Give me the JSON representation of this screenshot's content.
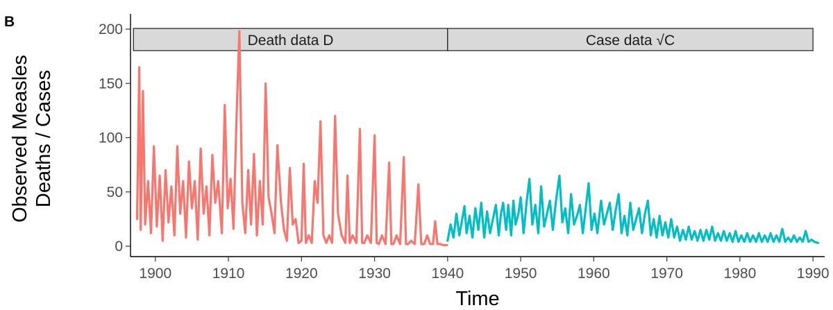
{
  "panel_label": "B",
  "chart_data": {
    "type": "line",
    "xlabel": "Time",
    "ylabel_lines": [
      "Observed Measles",
      "Deaths / Cases"
    ],
    "xlim": [
      1896.6,
      1991.6
    ],
    "ylim": [
      0,
      200
    ],
    "x_ticks": [
      1900,
      1910,
      1920,
      1930,
      1940,
      1950,
      1960,
      1970,
      1980,
      1990
    ],
    "y_ticks": [
      0,
      50,
      100,
      150,
      200
    ],
    "grid": false,
    "strips": [
      {
        "label": "Death data D",
        "x_start": 1897,
        "x_end": 1940
      },
      {
        "label": "Case data",
        "math": "√C",
        "x_start": 1940,
        "x_end": 1990
      }
    ],
    "series": [
      {
        "color": "#F8766D",
        "x": [
          1897.5,
          1897.8,
          1898.0,
          1898.3,
          1898.6,
          1899.0,
          1899.4,
          1899.8,
          1900.2,
          1900.6,
          1901.0,
          1901.4,
          1901.8,
          1902.2,
          1902.6,
          1903.0,
          1903.4,
          1903.8,
          1904.2,
          1904.6,
          1905.0,
          1905.4,
          1905.8,
          1906.2,
          1906.6,
          1907.0,
          1907.4,
          1907.8,
          1908.2,
          1908.6,
          1909.1,
          1909.5,
          1909.9,
          1910.3,
          1910.7,
          1911.1,
          1911.5,
          1911.9,
          1912.3,
          1912.7,
          1913.1,
          1913.5,
          1913.9,
          1914.3,
          1914.7,
          1915.1,
          1915.5,
          1915.9,
          1916.3,
          1916.7,
          1917.2,
          1917.6,
          1918.0,
          1918.4,
          1918.8,
          1919.2,
          1919.6,
          1920.0,
          1920.3,
          1920.6,
          1921.0,
          1921.4,
          1921.8,
          1922.2,
          1922.6,
          1923.0,
          1923.4,
          1923.8,
          1924.2,
          1924.6,
          1925.0,
          1925.5,
          1926.0,
          1926.3,
          1926.6,
          1927.0,
          1927.5,
          1928.0,
          1928.3,
          1928.6,
          1929.0,
          1929.5,
          1930.0,
          1930.3,
          1930.6,
          1931.0,
          1931.5,
          1932.0,
          1932.3,
          1932.6,
          1933.0,
          1933.5,
          1934.0,
          1934.3,
          1934.6,
          1935.0,
          1935.5,
          1936.0,
          1936.4,
          1936.8,
          1937.2,
          1937.6,
          1938.0,
          1938.3,
          1938.6,
          1939.0,
          1939.4,
          1939.9
        ],
        "y": [
          25,
          165,
          15,
          143,
          20,
          60,
          12,
          92,
          18,
          65,
          5,
          70,
          22,
          55,
          10,
          92,
          30,
          60,
          8,
          78,
          35,
          60,
          6,
          90,
          30,
          55,
          10,
          84,
          40,
          60,
          12,
          130,
          35,
          62,
          16,
          115,
          198,
          40,
          12,
          70,
          20,
          85,
          10,
          60,
          20,
          150,
          45,
          30,
          12,
          93,
          40,
          15,
          5,
          72,
          20,
          25,
          3,
          5,
          76,
          3,
          10,
          3,
          60,
          40,
          115,
          10,
          3,
          10,
          3,
          120,
          30,
          10,
          3,
          65,
          3,
          10,
          3,
          108,
          3,
          3,
          10,
          3,
          102,
          3,
          2,
          10,
          2,
          77,
          2,
          2,
          10,
          2,
          82,
          2,
          2,
          5,
          2,
          57,
          2,
          2,
          10,
          2,
          2,
          23,
          2,
          2,
          1,
          1
        ]
      },
      {
        "color": "#00BFC4",
        "x": [
          1940.0,
          1940.4,
          1940.8,
          1941.2,
          1941.6,
          1942.0,
          1942.3,
          1942.6,
          1943.0,
          1943.4,
          1943.8,
          1944.2,
          1944.6,
          1945.0,
          1945.4,
          1945.8,
          1946.2,
          1946.6,
          1947.0,
          1947.3,
          1947.6,
          1948.0,
          1948.3,
          1948.7,
          1949.0,
          1949.3,
          1949.7,
          1950.0,
          1950.4,
          1950.8,
          1951.2,
          1951.6,
          1952.0,
          1952.4,
          1952.8,
          1953.2,
          1953.6,
          1954.0,
          1954.4,
          1954.8,
          1955.3,
          1955.7,
          1956.1,
          1956.5,
          1956.9,
          1957.3,
          1957.7,
          1958.1,
          1958.5,
          1958.9,
          1959.3,
          1959.7,
          1960.1,
          1960.5,
          1961.0,
          1961.4,
          1961.8,
          1962.2,
          1962.6,
          1963.0,
          1963.4,
          1963.8,
          1964.2,
          1964.6,
          1965.0,
          1965.4,
          1965.8,
          1966.2,
          1966.6,
          1967.0,
          1967.4,
          1967.8,
          1968.2,
          1968.6,
          1969.0,
          1969.4,
          1969.8,
          1970.2,
          1970.6,
          1971.0,
          1971.4,
          1971.8,
          1972.2,
          1972.6,
          1973.0,
          1973.4,
          1973.8,
          1974.2,
          1974.6,
          1975.0,
          1975.4,
          1975.8,
          1976.2,
          1976.6,
          1977.0,
          1977.4,
          1977.8,
          1978.2,
          1978.6,
          1979.0,
          1979.4,
          1979.8,
          1980.2,
          1980.6,
          1981.0,
          1981.4,
          1981.8,
          1982.2,
          1982.6,
          1983.0,
          1983.4,
          1983.8,
          1984.2,
          1984.6,
          1985.0,
          1985.4,
          1985.8,
          1986.2,
          1986.6,
          1987.0,
          1987.4,
          1987.8,
          1988.2,
          1988.6,
          1989.0,
          1989.4,
          1989.8,
          1990.2,
          1990.7
        ],
        "y": [
          5,
          20,
          8,
          30,
          10,
          25,
          37,
          12,
          28,
          8,
          35,
          15,
          40,
          8,
          32,
          12,
          25,
          38,
          10,
          30,
          40,
          15,
          38,
          10,
          42,
          20,
          30,
          45,
          12,
          40,
          62,
          20,
          38,
          12,
          55,
          18,
          30,
          42,
          15,
          40,
          65,
          22,
          35,
          12,
          48,
          20,
          28,
          38,
          12,
          35,
          58,
          15,
          30,
          12,
          42,
          20,
          30,
          40,
          15,
          33,
          48,
          12,
          28,
          10,
          40,
          15,
          25,
          35,
          12,
          30,
          42,
          10,
          25,
          8,
          28,
          10,
          22,
          8,
          25,
          8,
          18,
          5,
          15,
          6,
          18,
          6,
          14,
          5,
          15,
          5,
          15,
          6,
          18,
          5,
          12,
          5,
          14,
          5,
          12,
          4,
          14,
          4,
          10,
          4,
          12,
          4,
          10,
          4,
          12,
          4,
          10,
          4,
          12,
          4,
          10,
          4,
          16,
          4,
          8,
          4,
          10,
          4,
          8,
          4,
          14,
          4,
          6,
          4,
          3
        ]
      }
    ]
  }
}
